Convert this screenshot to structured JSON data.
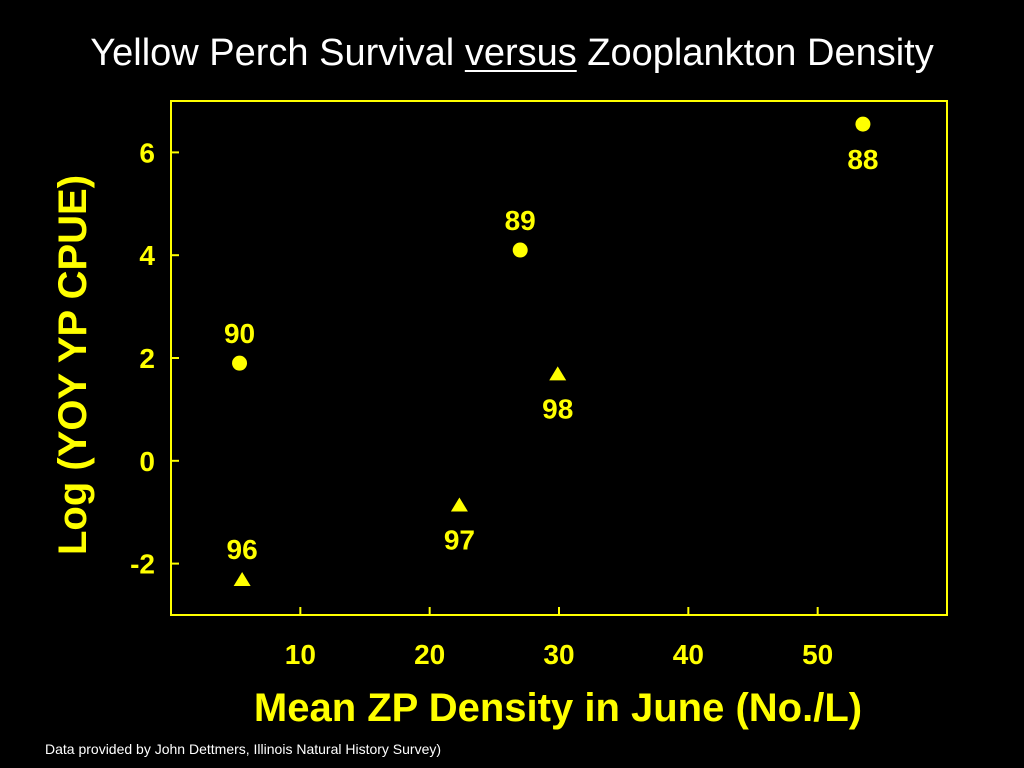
{
  "title": {
    "part1": "Yellow Perch Survival ",
    "part2": "versus",
    "part3": " Zooplankton Density"
  },
  "footnote": "Data provided by John Dettmers, Illinois Natural History Survey)",
  "colors": {
    "background": "#000000",
    "title_text": "#ffffff",
    "accent": "#ffff00"
  },
  "chart_data": {
    "type": "scatter",
    "xlabel": "Mean ZP Density in June (No./L)",
    "ylabel": "Log (YOY YP CPUE)",
    "xlim": [
      0,
      60
    ],
    "ylim": [
      -3,
      7
    ],
    "xticks": [
      10,
      20,
      30,
      40,
      50
    ],
    "yticks": [
      -2,
      0,
      2,
      4,
      6
    ],
    "grid": false,
    "legend": "none",
    "series": [
      {
        "marker": "circle",
        "points": [
          {
            "x": 53.5,
            "y": 6.55,
            "label": "88",
            "label_pos": "below"
          },
          {
            "x": 27.0,
            "y": 4.1,
            "label": "89",
            "label_pos": "above"
          },
          {
            "x": 5.3,
            "y": 1.9,
            "label": "90",
            "label_pos": "above"
          }
        ]
      },
      {
        "marker": "triangle",
        "points": [
          {
            "x": 5.5,
            "y": -2.3,
            "label": "96",
            "label_pos": "above"
          },
          {
            "x": 22.3,
            "y": -0.85,
            "label": "97",
            "label_pos": "below"
          },
          {
            "x": 29.9,
            "y": 1.7,
            "label": "98",
            "label_pos": "below"
          }
        ]
      }
    ]
  }
}
